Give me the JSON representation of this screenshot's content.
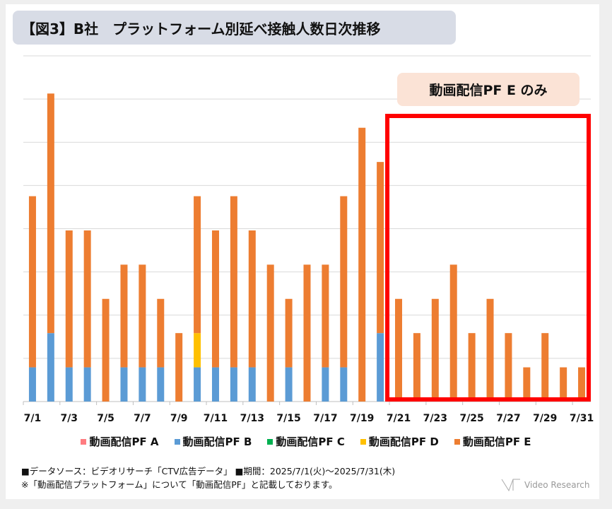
{
  "title": "【図3】B社　プラットフォーム別延べ接触人数日次推移",
  "annotation": "動画配信PF E のみ",
  "footer": {
    "source": "■データソース：ビデオリサーチ「CTV広告データ」 ■期間：2025/7/1(火)～2025/7/31(木)",
    "note": "※「動画配信プラットフォーム」について「動画配信PF」と記載しております。",
    "logo": "Video Research"
  },
  "chart_data": {
    "type": "bar",
    "stacked": true,
    "title": "【図3】B社　プラットフォーム別延べ接触人数日次推移",
    "xlabel": "",
    "ylabel": "",
    "y_tick_labels_shown": false,
    "grid": true,
    "legend_position": "bottom",
    "ylim": [
      0,
      10
    ],
    "categories": [
      "7/1",
      "7/2",
      "7/3",
      "7/4",
      "7/5",
      "7/6",
      "7/7",
      "7/8",
      "7/9",
      "7/10",
      "7/11",
      "7/12",
      "7/13",
      "7/14",
      "7/15",
      "7/16",
      "7/17",
      "7/18",
      "7/19",
      "7/20",
      "7/21",
      "7/22",
      "7/23",
      "7/24",
      "7/25",
      "7/26",
      "7/27",
      "7/28",
      "7/29",
      "7/30",
      "7/31"
    ],
    "x_tick_labels": [
      "7/1",
      "7/3",
      "7/5",
      "7/7",
      "7/9",
      "7/11",
      "7/13",
      "7/15",
      "7/17",
      "7/19",
      "7/21",
      "7/23",
      "7/25",
      "7/27",
      "7/29",
      "7/31"
    ],
    "series": [
      {
        "name": "動画配信PF A",
        "color": "#ff7c80",
        "values": [
          0,
          0,
          0,
          0,
          0,
          0,
          0,
          0,
          0,
          0,
          0,
          0,
          0,
          0,
          0,
          0,
          0,
          0,
          0,
          0,
          0,
          0,
          0,
          0,
          0,
          0,
          0,
          0,
          0,
          0,
          0
        ]
      },
      {
        "name": "動画配信PF B",
        "color": "#5b9bd5",
        "values": [
          1,
          2,
          1,
          1,
          0,
          1,
          1,
          1,
          0,
          1,
          1,
          1,
          1,
          0,
          1,
          0,
          1,
          1,
          0,
          2,
          0,
          0,
          0,
          0,
          0,
          0,
          0,
          0,
          0,
          0,
          0
        ]
      },
      {
        "name": "動画配信PF C",
        "color": "#00b050",
        "values": [
          0,
          0,
          0,
          0,
          0,
          0,
          0,
          0,
          0,
          0,
          0,
          0,
          0,
          0,
          0,
          0,
          0,
          0,
          0,
          0,
          0,
          0,
          0,
          0,
          0,
          0,
          0,
          0,
          0,
          0,
          0
        ]
      },
      {
        "name": "動画配信PF D",
        "color": "#ffc000",
        "values": [
          0,
          0,
          0,
          0,
          0,
          0,
          0,
          0,
          0,
          1,
          0,
          0,
          0,
          0,
          0,
          0,
          0,
          0,
          0,
          0,
          0,
          0,
          0,
          0,
          0,
          0,
          0,
          0,
          0,
          0,
          0
        ]
      },
      {
        "name": "動画配信PF E",
        "color": "#ed7d31",
        "values": [
          5,
          7,
          4,
          4,
          3,
          3,
          3,
          2,
          2,
          4,
          4,
          5,
          4,
          4,
          2,
          4,
          3,
          5,
          8,
          5,
          3,
          2,
          3,
          4,
          2,
          3,
          2,
          1,
          2,
          1,
          1
        ]
      }
    ],
    "highlight": {
      "from": "7/21",
      "to": "7/31",
      "color": "#ff0000"
    }
  }
}
